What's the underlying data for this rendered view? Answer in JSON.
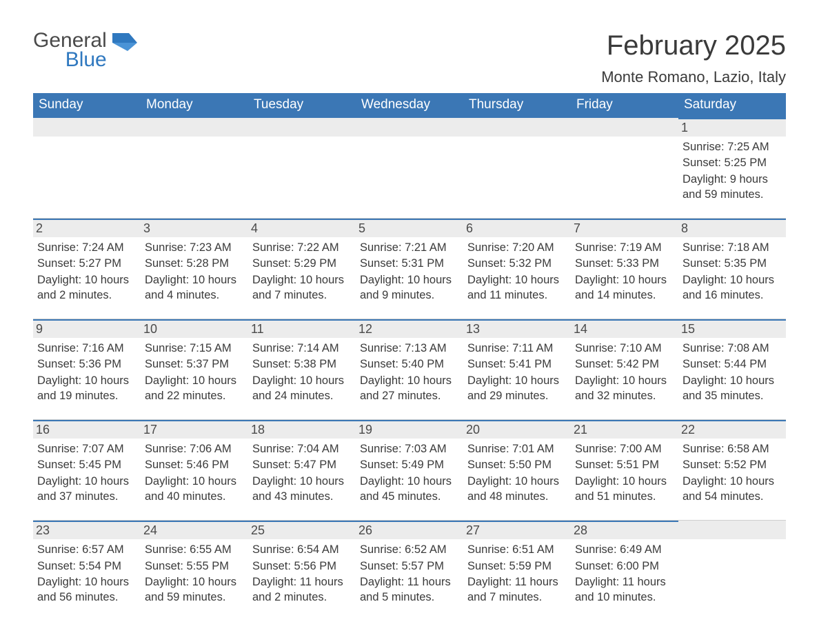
{
  "brand": {
    "general": "General",
    "blue": "Blue",
    "shape_color": "#2f78bf"
  },
  "title": "February 2025",
  "location": "Monte Romano, Lazio, Italy",
  "colors": {
    "header_bg": "#3b77b5",
    "header_text": "#ffffff",
    "daynum_bg": "#ececec",
    "daynum_border": "#3b77b5",
    "body_text": "#3a3a3a",
    "divider": "#cfcfcf",
    "background": "#ffffff"
  },
  "weekdays": [
    "Sunday",
    "Monday",
    "Tuesday",
    "Wednesday",
    "Thursday",
    "Friday",
    "Saturday"
  ],
  "weeks": [
    [
      null,
      null,
      null,
      null,
      null,
      null,
      {
        "n": "1",
        "sunrise": "Sunrise: 7:25 AM",
        "sunset": "Sunset: 5:25 PM",
        "daylight": "Daylight: 9 hours and 59 minutes."
      }
    ],
    [
      {
        "n": "2",
        "sunrise": "Sunrise: 7:24 AM",
        "sunset": "Sunset: 5:27 PM",
        "daylight": "Daylight: 10 hours and 2 minutes."
      },
      {
        "n": "3",
        "sunrise": "Sunrise: 7:23 AM",
        "sunset": "Sunset: 5:28 PM",
        "daylight": "Daylight: 10 hours and 4 minutes."
      },
      {
        "n": "4",
        "sunrise": "Sunrise: 7:22 AM",
        "sunset": "Sunset: 5:29 PM",
        "daylight": "Daylight: 10 hours and 7 minutes."
      },
      {
        "n": "5",
        "sunrise": "Sunrise: 7:21 AM",
        "sunset": "Sunset: 5:31 PM",
        "daylight": "Daylight: 10 hours and 9 minutes."
      },
      {
        "n": "6",
        "sunrise": "Sunrise: 7:20 AM",
        "sunset": "Sunset: 5:32 PM",
        "daylight": "Daylight: 10 hours and 11 minutes."
      },
      {
        "n": "7",
        "sunrise": "Sunrise: 7:19 AM",
        "sunset": "Sunset: 5:33 PM",
        "daylight": "Daylight: 10 hours and 14 minutes."
      },
      {
        "n": "8",
        "sunrise": "Sunrise: 7:18 AM",
        "sunset": "Sunset: 5:35 PM",
        "daylight": "Daylight: 10 hours and 16 minutes."
      }
    ],
    [
      {
        "n": "9",
        "sunrise": "Sunrise: 7:16 AM",
        "sunset": "Sunset: 5:36 PM",
        "daylight": "Daylight: 10 hours and 19 minutes."
      },
      {
        "n": "10",
        "sunrise": "Sunrise: 7:15 AM",
        "sunset": "Sunset: 5:37 PM",
        "daylight": "Daylight: 10 hours and 22 minutes."
      },
      {
        "n": "11",
        "sunrise": "Sunrise: 7:14 AM",
        "sunset": "Sunset: 5:38 PM",
        "daylight": "Daylight: 10 hours and 24 minutes."
      },
      {
        "n": "12",
        "sunrise": "Sunrise: 7:13 AM",
        "sunset": "Sunset: 5:40 PM",
        "daylight": "Daylight: 10 hours and 27 minutes."
      },
      {
        "n": "13",
        "sunrise": "Sunrise: 7:11 AM",
        "sunset": "Sunset: 5:41 PM",
        "daylight": "Daylight: 10 hours and 29 minutes."
      },
      {
        "n": "14",
        "sunrise": "Sunrise: 7:10 AM",
        "sunset": "Sunset: 5:42 PM",
        "daylight": "Daylight: 10 hours and 32 minutes."
      },
      {
        "n": "15",
        "sunrise": "Sunrise: 7:08 AM",
        "sunset": "Sunset: 5:44 PM",
        "daylight": "Daylight: 10 hours and 35 minutes."
      }
    ],
    [
      {
        "n": "16",
        "sunrise": "Sunrise: 7:07 AM",
        "sunset": "Sunset: 5:45 PM",
        "daylight": "Daylight: 10 hours and 37 minutes."
      },
      {
        "n": "17",
        "sunrise": "Sunrise: 7:06 AM",
        "sunset": "Sunset: 5:46 PM",
        "daylight": "Daylight: 10 hours and 40 minutes."
      },
      {
        "n": "18",
        "sunrise": "Sunrise: 7:04 AM",
        "sunset": "Sunset: 5:47 PM",
        "daylight": "Daylight: 10 hours and 43 minutes."
      },
      {
        "n": "19",
        "sunrise": "Sunrise: 7:03 AM",
        "sunset": "Sunset: 5:49 PM",
        "daylight": "Daylight: 10 hours and 45 minutes."
      },
      {
        "n": "20",
        "sunrise": "Sunrise: 7:01 AM",
        "sunset": "Sunset: 5:50 PM",
        "daylight": "Daylight: 10 hours and 48 minutes."
      },
      {
        "n": "21",
        "sunrise": "Sunrise: 7:00 AM",
        "sunset": "Sunset: 5:51 PM",
        "daylight": "Daylight: 10 hours and 51 minutes."
      },
      {
        "n": "22",
        "sunrise": "Sunrise: 6:58 AM",
        "sunset": "Sunset: 5:52 PM",
        "daylight": "Daylight: 10 hours and 54 minutes."
      }
    ],
    [
      {
        "n": "23",
        "sunrise": "Sunrise: 6:57 AM",
        "sunset": "Sunset: 5:54 PM",
        "daylight": "Daylight: 10 hours and 56 minutes."
      },
      {
        "n": "24",
        "sunrise": "Sunrise: 6:55 AM",
        "sunset": "Sunset: 5:55 PM",
        "daylight": "Daylight: 10 hours and 59 minutes."
      },
      {
        "n": "25",
        "sunrise": "Sunrise: 6:54 AM",
        "sunset": "Sunset: 5:56 PM",
        "daylight": "Daylight: 11 hours and 2 minutes."
      },
      {
        "n": "26",
        "sunrise": "Sunrise: 6:52 AM",
        "sunset": "Sunset: 5:57 PM",
        "daylight": "Daylight: 11 hours and 5 minutes."
      },
      {
        "n": "27",
        "sunrise": "Sunrise: 6:51 AM",
        "sunset": "Sunset: 5:59 PM",
        "daylight": "Daylight: 11 hours and 7 minutes."
      },
      {
        "n": "28",
        "sunrise": "Sunrise: 6:49 AM",
        "sunset": "Sunset: 6:00 PM",
        "daylight": "Daylight: 11 hours and 10 minutes."
      },
      null
    ]
  ]
}
